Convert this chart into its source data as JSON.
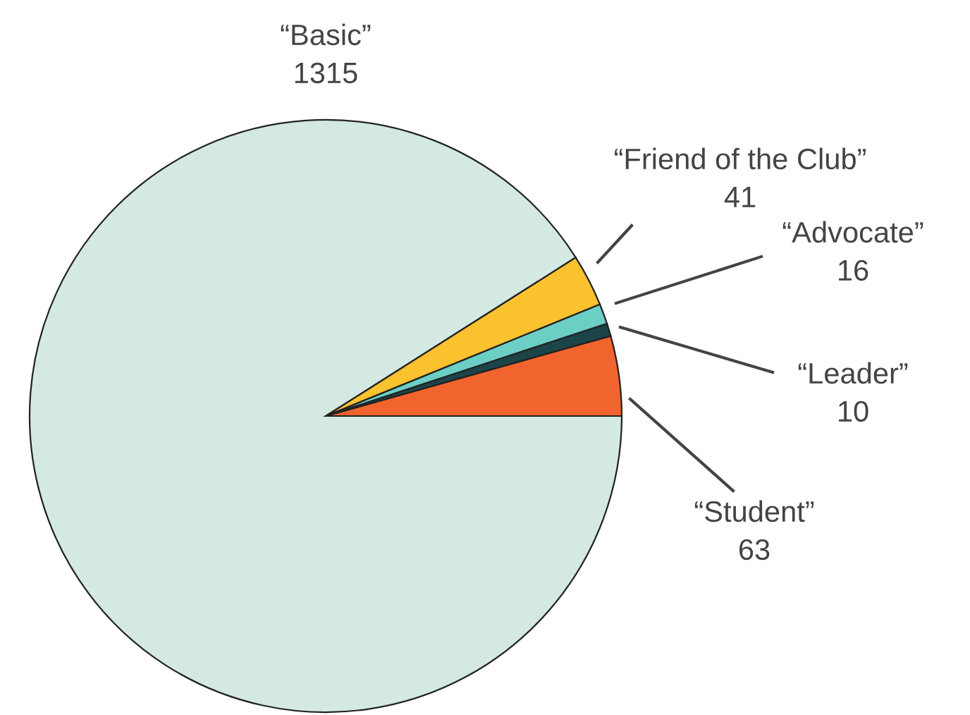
{
  "chart_data": {
    "type": "pie",
    "categories": [
      "“Basic”",
      "“Friend of the Club”",
      "“Advocate”",
      "“Leader”",
      "“Student”"
    ],
    "values": [
      1315,
      41,
      16,
      10,
      63
    ],
    "colors": [
      "#d3e9e2",
      "#f9c22e",
      "#6ccfc6",
      "#1b4548",
      "#f2642d"
    ],
    "data_labels": true
  }
}
